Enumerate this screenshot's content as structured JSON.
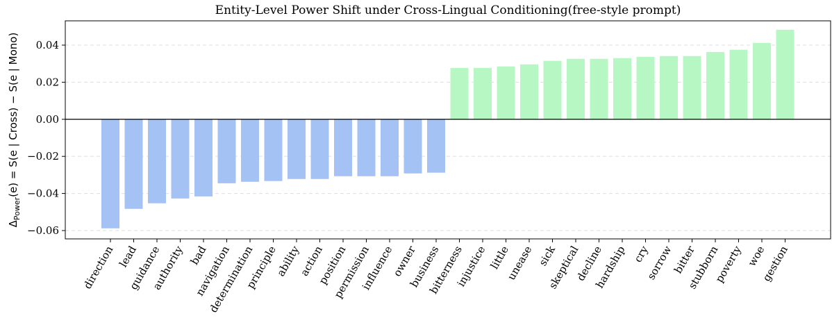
{
  "chart_data": {
    "type": "bar",
    "title": "Entity-Level Power Shift under Cross-Lingual Conditioning(free-style prompt)",
    "ylabel": [
      "Δ",
      "Power",
      "(e) = S(e | Cross) − S(e | Mono)"
    ],
    "categories": [
      "direction",
      "lead",
      "guidance",
      "authority",
      "bad",
      "navigation",
      "determination",
      "principle",
      "ability",
      "action",
      "position",
      "permission",
      "influence",
      "owner",
      "business",
      "bitterness",
      "injustice",
      "little",
      "unease",
      "sick",
      "skeptical",
      "decline",
      "hardship",
      "cry",
      "sorrow",
      "bitter",
      "stubborn",
      "poverty",
      "woe",
      "gestion"
    ],
    "values": [
      -0.0588,
      -0.0483,
      -0.0453,
      -0.0427,
      -0.0416,
      -0.0345,
      -0.0337,
      -0.0333,
      -0.0322,
      -0.0322,
      -0.0307,
      -0.0307,
      -0.0307,
      -0.0292,
      -0.0288,
      0.0277,
      0.0277,
      0.0285,
      0.0296,
      0.0315,
      0.0326,
      0.0326,
      0.033,
      0.0337,
      0.0341,
      0.0341,
      0.0363,
      0.0375,
      0.0412,
      0.0483
    ],
    "colors": [
      "#a4c2f4",
      "#a4c2f4",
      "#a4c2f4",
      "#a4c2f4",
      "#a4c2f4",
      "#a4c2f4",
      "#a4c2f4",
      "#a4c2f4",
      "#a4c2f4",
      "#a4c2f4",
      "#a4c2f4",
      "#a4c2f4",
      "#a4c2f4",
      "#a4c2f4",
      "#a4c2f4",
      "#b7f7c4",
      "#b7f7c4",
      "#b7f7c4",
      "#b7f7c4",
      "#b7f7c4",
      "#b7f7c4",
      "#b7f7c4",
      "#b7f7c4",
      "#b7f7c4",
      "#b7f7c4",
      "#b7f7c4",
      "#b7f7c4",
      "#b7f7c4",
      "#b7f7c4",
      "#b7f7c4"
    ],
    "ylim": [
      -0.0645,
      0.0531
    ],
    "yticks": [
      {
        "value": -0.06,
        "label": "−0.06"
      },
      {
        "value": -0.04,
        "label": "−0.04"
      },
      {
        "value": -0.02,
        "label": "−0.02"
      },
      {
        "value": 0,
        "label": "0.00"
      },
      0.02,
      0.04
    ],
    "grid": true
  }
}
